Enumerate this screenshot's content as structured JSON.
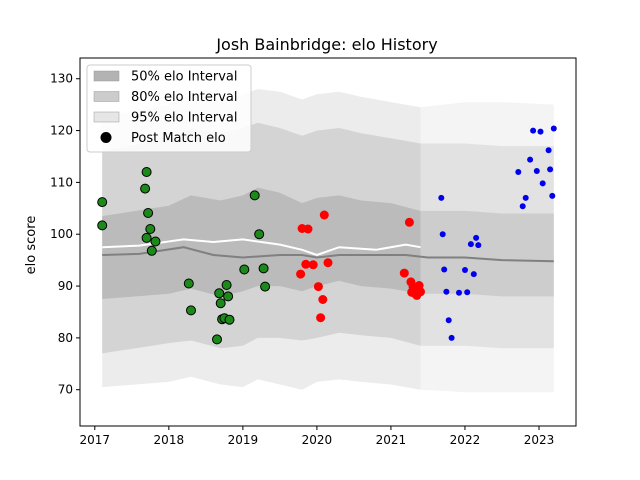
{
  "chart_data": {
    "type": "scatter",
    "title": "Josh Bainbridge: elo History",
    "xlabel": "",
    "ylabel": "elo score",
    "xlim": [
      2016.8,
      2023.5
    ],
    "ylim": [
      63,
      134
    ],
    "xticks": [
      2017,
      2018,
      2019,
      2020,
      2021,
      2022,
      2023
    ],
    "xtick_labels": [
      "2017",
      "2018",
      "2019",
      "2020",
      "2021",
      "2022",
      "2023"
    ],
    "yticks": [
      70,
      80,
      90,
      100,
      110,
      120,
      130
    ],
    "ytick_labels": [
      "70",
      "80",
      "90",
      "100",
      "110",
      "120",
      "130"
    ],
    "grid": false,
    "legend_position": "top-left",
    "legend": [
      {
        "label": "50% elo Interval",
        "kind": "band50"
      },
      {
        "label": "80% elo Interval",
        "kind": "band80"
      },
      {
        "label": "95% elo Interval",
        "kind": "band95"
      },
      {
        "label": "Post Match elo",
        "kind": "marker"
      }
    ],
    "colors": {
      "band50": "#b3b3b3",
      "band80": "#cccccc",
      "band95": "#e6e6e6",
      "mean_line": "#808080",
      "white_line": "#ffffff",
      "green": "#1b8a1b",
      "red": "#ff0000",
      "blue": "#0000ee"
    },
    "bands": {
      "x": [
        2017.1,
        2018.0,
        2018.3,
        2018.7,
        2019.0,
        2019.2,
        2019.5,
        2019.8,
        2020.0,
        2020.3,
        2020.6,
        2021.0,
        2021.4
      ],
      "band50": {
        "low": [
          87.5,
          88.5,
          89.5,
          88.0,
          89.0,
          90.0,
          90.0,
          89.0,
          90.0,
          91.0,
          90.0,
          89.5,
          88.5
        ],
        "high": [
          103.5,
          105.5,
          107.5,
          106.5,
          107.5,
          109.0,
          108.0,
          106.0,
          107.0,
          107.5,
          106.5,
          106.0,
          104.5
        ]
      },
      "band80": {
        "low": [
          77.0,
          79.0,
          79.5,
          78.0,
          78.5,
          80.0,
          80.0,
          79.5,
          80.0,
          81.0,
          80.5,
          80.0,
          78.5
        ],
        "high": [
          116.0,
          118.5,
          120.5,
          119.5,
          120.5,
          121.5,
          120.5,
          119.0,
          120.0,
          120.5,
          119.5,
          118.5,
          117.5
        ]
      },
      "band95": {
        "low": [
          70.5,
          71.5,
          72.5,
          71.0,
          70.5,
          72.0,
          71.0,
          70.0,
          71.5,
          72.0,
          71.5,
          71.0,
          70.0
        ],
        "high": [
          122.5,
          125.0,
          127.0,
          126.0,
          127.0,
          128.0,
          127.5,
          126.0,
          127.0,
          127.5,
          126.5,
          125.5,
          124.5
        ]
      },
      "right_x": [
        2021.4,
        2022.0,
        2022.5,
        2023.2
      ],
      "right_band95": {
        "low": [
          70.0,
          69.5,
          69.5,
          69.5
        ],
        "high": [
          124.5,
          125.5,
          125.5,
          125.0
        ]
      },
      "right_band80": {
        "low": [
          78.5,
          78.5,
          78.0,
          78.0
        ],
        "high": [
          117.5,
          117.5,
          117.0,
          117.0
        ]
      },
      "right_band50": {
        "low": [
          88.5,
          88.5,
          88.0,
          88.0
        ],
        "high": [
          104.5,
          104.5,
          104.0,
          104.0
        ]
      }
    },
    "mean_line": {
      "x": [
        2017.1,
        2017.6,
        2018.2,
        2018.6,
        2019.0,
        2019.5,
        2019.8,
        2020.0,
        2020.3,
        2020.8,
        2021.2,
        2021.5,
        2022.0,
        2022.5,
        2023.2
      ],
      "y": [
        96.0,
        96.2,
        97.5,
        96.0,
        95.5,
        96.0,
        96.0,
        95.5,
        96.0,
        96.0,
        96.0,
        95.5,
        95.5,
        95.0,
        94.8
      ]
    },
    "white_line": {
      "x": [
        2017.1,
        2017.6,
        2018.2,
        2018.6,
        2019.0,
        2019.5,
        2019.8,
        2020.0,
        2020.3,
        2020.8,
        2021.2,
        2021.4
      ],
      "y": [
        97.5,
        97.8,
        99.0,
        98.5,
        99.0,
        98.0,
        97.0,
        96.0,
        97.5,
        97.0,
        98.0,
        97.5
      ]
    },
    "series": [
      {
        "color_key": "green",
        "x": [
          2017.1,
          2017.1,
          2017.7,
          2017.68,
          2017.7,
          2017.72,
          2017.75,
          2017.77,
          2017.82,
          2018.27,
          2018.3,
          2018.65,
          2018.68,
          2018.7,
          2018.72,
          2018.75,
          2018.78,
          2018.8,
          2018.82,
          2019.02,
          2019.16,
          2019.22,
          2019.28,
          2019.3
        ],
        "y": [
          106.2,
          101.7,
          112.0,
          108.8,
          99.3,
          104.1,
          101.0,
          96.8,
          98.6,
          90.5,
          85.3,
          79.7,
          88.6,
          86.7,
          83.6,
          83.8,
          90.2,
          88.0,
          83.5,
          93.2,
          107.5,
          100.0,
          93.4,
          89.9
        ]
      },
      {
        "color_key": "red",
        "x": [
          2019.78,
          2019.8,
          2019.85,
          2019.88,
          2019.95,
          2020.02,
          2020.05,
          2020.08,
          2020.1,
          2020.15,
          2021.18,
          2021.25,
          2021.27,
          2021.28,
          2021.3,
          2021.32,
          2021.35,
          2021.38,
          2021.4
        ],
        "y": [
          92.3,
          101.1,
          94.2,
          101.0,
          94.1,
          89.9,
          83.9,
          87.4,
          103.7,
          94.5,
          92.5,
          102.3,
          90.8,
          88.8,
          89.8,
          88.6,
          88.2,
          90.1,
          88.9
        ],
        "markers": "large"
      },
      {
        "color_key": "blue",
        "x": [
          2021.68,
          2021.7,
          2021.72,
          2021.75,
          2021.78,
          2021.82,
          2021.92,
          2022.0,
          2022.03,
          2022.08,
          2022.12,
          2022.15,
          2022.18,
          2022.72,
          2022.78,
          2022.82,
          2022.88,
          2022.92,
          2022.97,
          2023.02,
          2023.05,
          2023.13,
          2023.15,
          2023.18,
          2023.2
        ],
        "y": [
          107.0,
          100.0,
          93.2,
          88.9,
          83.4,
          80.0,
          88.7,
          93.1,
          88.8,
          98.1,
          92.3,
          99.3,
          97.9,
          112.0,
          105.4,
          107.0,
          114.4,
          120.0,
          112.2,
          119.8,
          109.8,
          116.2,
          112.5,
          107.4,
          120.4
        ],
        "markers": "small"
      }
    ]
  }
}
